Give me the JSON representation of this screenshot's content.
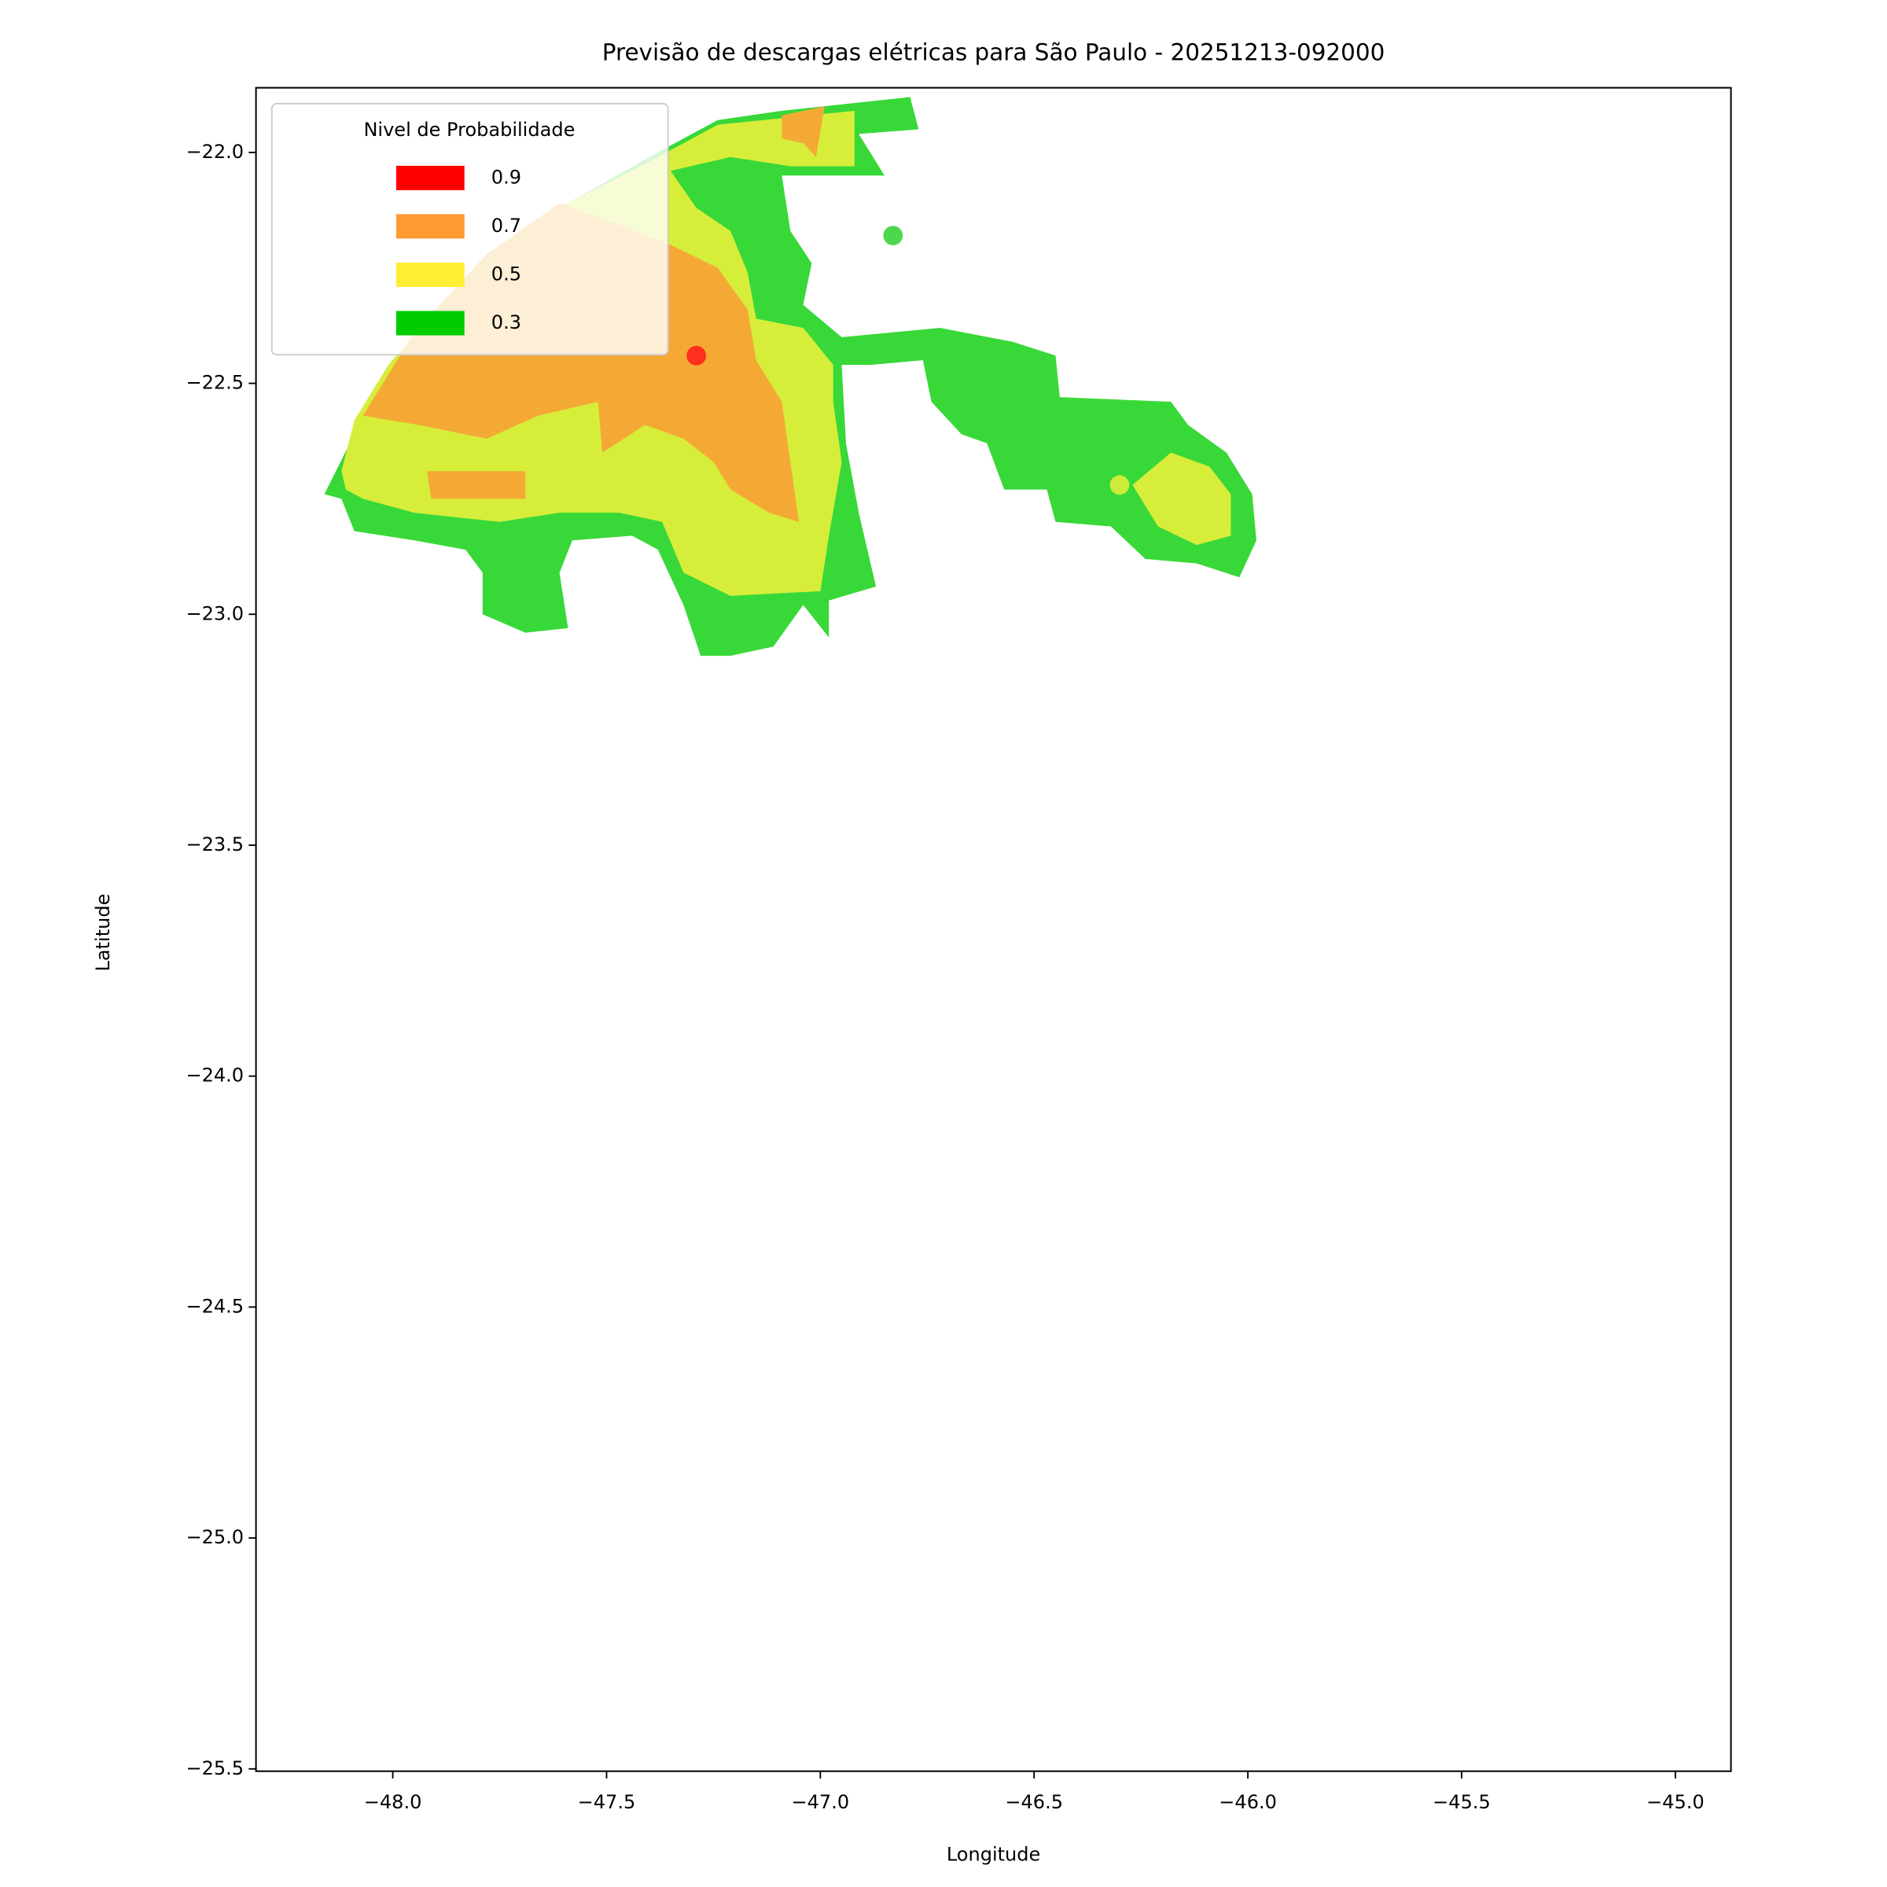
{
  "chart_data": {
    "type": "contour",
    "title": "Previsão de descargas elétricas para São Paulo - 20251213-092000",
    "xlabel": "Longitude",
    "ylabel": "Latitude",
    "xlim": [
      -48.32,
      -44.87
    ],
    "ylim": [
      -25.505,
      -21.86
    ],
    "xticks": [
      {
        "value": -48.0,
        "label": "−48.0"
      },
      {
        "value": -47.5,
        "label": "−47.5"
      },
      {
        "value": -47.0,
        "label": "−47.0"
      },
      {
        "value": -46.5,
        "label": "−46.5"
      },
      {
        "value": -46.0,
        "label": "−46.0"
      },
      {
        "value": -45.5,
        "label": "−45.5"
      },
      {
        "value": -45.0,
        "label": "−45.0"
      }
    ],
    "yticks": [
      {
        "value": -22.0,
        "label": "−22.0"
      },
      {
        "value": -22.5,
        "label": "−22.5"
      },
      {
        "value": -23.0,
        "label": "−23.0"
      },
      {
        "value": -23.5,
        "label": "−23.5"
      },
      {
        "value": -24.0,
        "label": "−24.0"
      },
      {
        "value": -24.5,
        "label": "−24.5"
      },
      {
        "value": -25.0,
        "label": "−25.0"
      },
      {
        "value": -25.5,
        "label": "−25.5"
      }
    ],
    "legend": {
      "title": "Nivel de Probabilidade",
      "position": "upper left",
      "entries": [
        {
          "name": "0.9",
          "color": "#ff0000"
        },
        {
          "name": "0.7",
          "color": "#ff9933"
        },
        {
          "name": "0.5",
          "color": "#ffee33"
        },
        {
          "name": "0.3",
          "color": "#00cc00"
        }
      ]
    },
    "regions": [
      {
        "level": 0.3,
        "color": "#38d838",
        "lon": [
          -48.16,
          -48.09,
          -48.01,
          -47.84,
          -47.61,
          -47.38,
          -47.24,
          -47.09,
          -46.79,
          -46.77,
          -46.91,
          -46.85,
          -47.09,
          -47.07,
          -47.02,
          -47.04,
          -46.95,
          -46.72,
          -46.55,
          -46.45,
          -46.44,
          -46.18,
          -46.14,
          -46.05,
          -45.99,
          -45.98,
          -46.02,
          -46.12,
          -46.24,
          -46.32,
          -46.45,
          -46.47,
          -46.57,
          -46.61,
          -46.67,
          -46.74,
          -46.76,
          -46.88,
          -46.95,
          -46.94,
          -46.91,
          -46.87,
          -46.98,
          -46.98,
          -47.04,
          -47.11,
          -47.21,
          -47.28,
          -47.32,
          -47.38,
          -47.44,
          -47.58,
          -47.61,
          -47.59,
          -47.69,
          -47.79,
          -47.79,
          -47.83,
          -47.95,
          -48.09,
          -48.12
        ],
        "lat": [
          -22.74,
          -22.61,
          -22.46,
          -22.28,
          -22.12,
          -22.0,
          -21.93,
          -21.91,
          -21.88,
          -21.95,
          -21.96,
          -22.05,
          -22.05,
          -22.17,
          -22.24,
          -22.33,
          -22.4,
          -22.38,
          -22.41,
          -22.44,
          -22.53,
          -22.54,
          -22.59,
          -22.65,
          -22.74,
          -22.84,
          -22.92,
          -22.89,
          -22.88,
          -22.81,
          -22.8,
          -22.73,
          -22.73,
          -22.63,
          -22.61,
          -22.54,
          -22.45,
          -22.46,
          -22.46,
          -22.63,
          -22.78,
          -22.94,
          -22.97,
          -23.05,
          -22.98,
          -23.07,
          -23.09,
          -23.09,
          -22.98,
          -22.86,
          -22.83,
          -22.84,
          -22.91,
          -23.03,
          -23.04,
          -23.0,
          -22.91,
          -22.86,
          -22.84,
          -22.82,
          -22.75
        ]
      },
      {
        "level": 0.5,
        "color": "#d6ee3a",
        "lon": [
          -48.12,
          -48.09,
          -48.01,
          -47.84,
          -47.61,
          -47.38,
          -47.24,
          -46.92,
          -46.92,
          -47.07,
          -47.21,
          -47.35,
          -47.29,
          -47.21,
          -47.17,
          -47.15,
          -47.04,
          -46.97,
          -46.97,
          -46.95,
          -46.98,
          -47.0,
          -47.21,
          -47.32,
          -47.37,
          -47.47,
          -47.61,
          -47.75,
          -47.85,
          -47.95,
          -48.07,
          -48.11
        ],
        "lat": [
          -22.69,
          -22.58,
          -22.46,
          -22.28,
          -22.12,
          -22.01,
          -21.94,
          -21.91,
          -22.03,
          -22.03,
          -22.01,
          -22.04,
          -22.12,
          -22.17,
          -22.26,
          -22.36,
          -22.38,
          -22.46,
          -22.54,
          -22.67,
          -22.83,
          -22.95,
          -22.96,
          -22.91,
          -22.8,
          -22.78,
          -22.78,
          -22.8,
          -22.79,
          -22.78,
          -22.75,
          -22.73
        ]
      },
      {
        "level": 0.5,
        "color": "#d6ee3a",
        "lon": [
          -46.27,
          -46.18,
          -46.09,
          -46.04,
          -46.04,
          -46.12,
          -46.21
        ],
        "lat": [
          -22.72,
          -22.65,
          -22.68,
          -22.74,
          -22.83,
          -22.85,
          -22.81
        ]
      },
      {
        "level": 0.7,
        "color": "#f5a935",
        "lon": [
          -48.07,
          -47.95,
          -47.78,
          -47.61,
          -47.49,
          -47.35,
          -47.24,
          -47.17,
          -47.15,
          -47.09,
          -47.05,
          -47.12,
          -47.21,
          -47.25,
          -47.32,
          -47.41,
          -47.51,
          -47.52,
          -47.66,
          -47.78,
          -47.94
        ],
        "lat": [
          -22.57,
          -22.39,
          -22.22,
          -22.11,
          -22.15,
          -22.2,
          -22.25,
          -22.34,
          -22.45,
          -22.54,
          -22.8,
          -22.78,
          -22.73,
          -22.67,
          -22.62,
          -22.59,
          -22.65,
          -22.54,
          -22.57,
          -22.62,
          -22.59
        ]
      },
      {
        "level": 0.7,
        "color": "#f5a935",
        "lon": [
          -47.09,
          -46.99,
          -47.01,
          -47.04,
          -47.09
        ],
        "lat": [
          -21.92,
          -21.9,
          -22.01,
          -21.98,
          -21.97
        ]
      },
      {
        "level": 0.7,
        "color": "#f5a935",
        "lon": [
          -47.92,
          -47.69,
          -47.69,
          -47.91
        ],
        "lat": [
          -22.69,
          -22.69,
          -22.75,
          -22.75
        ]
      }
    ],
    "points": {
      "lon": [
        -47.29,
        -46.83,
        -46.3
      ],
      "lat": [
        -22.44,
        -22.18,
        -22.72
      ],
      "colors": [
        "#ff1a1a",
        "#2fd02f",
        "#e6f03a"
      ]
    }
  }
}
